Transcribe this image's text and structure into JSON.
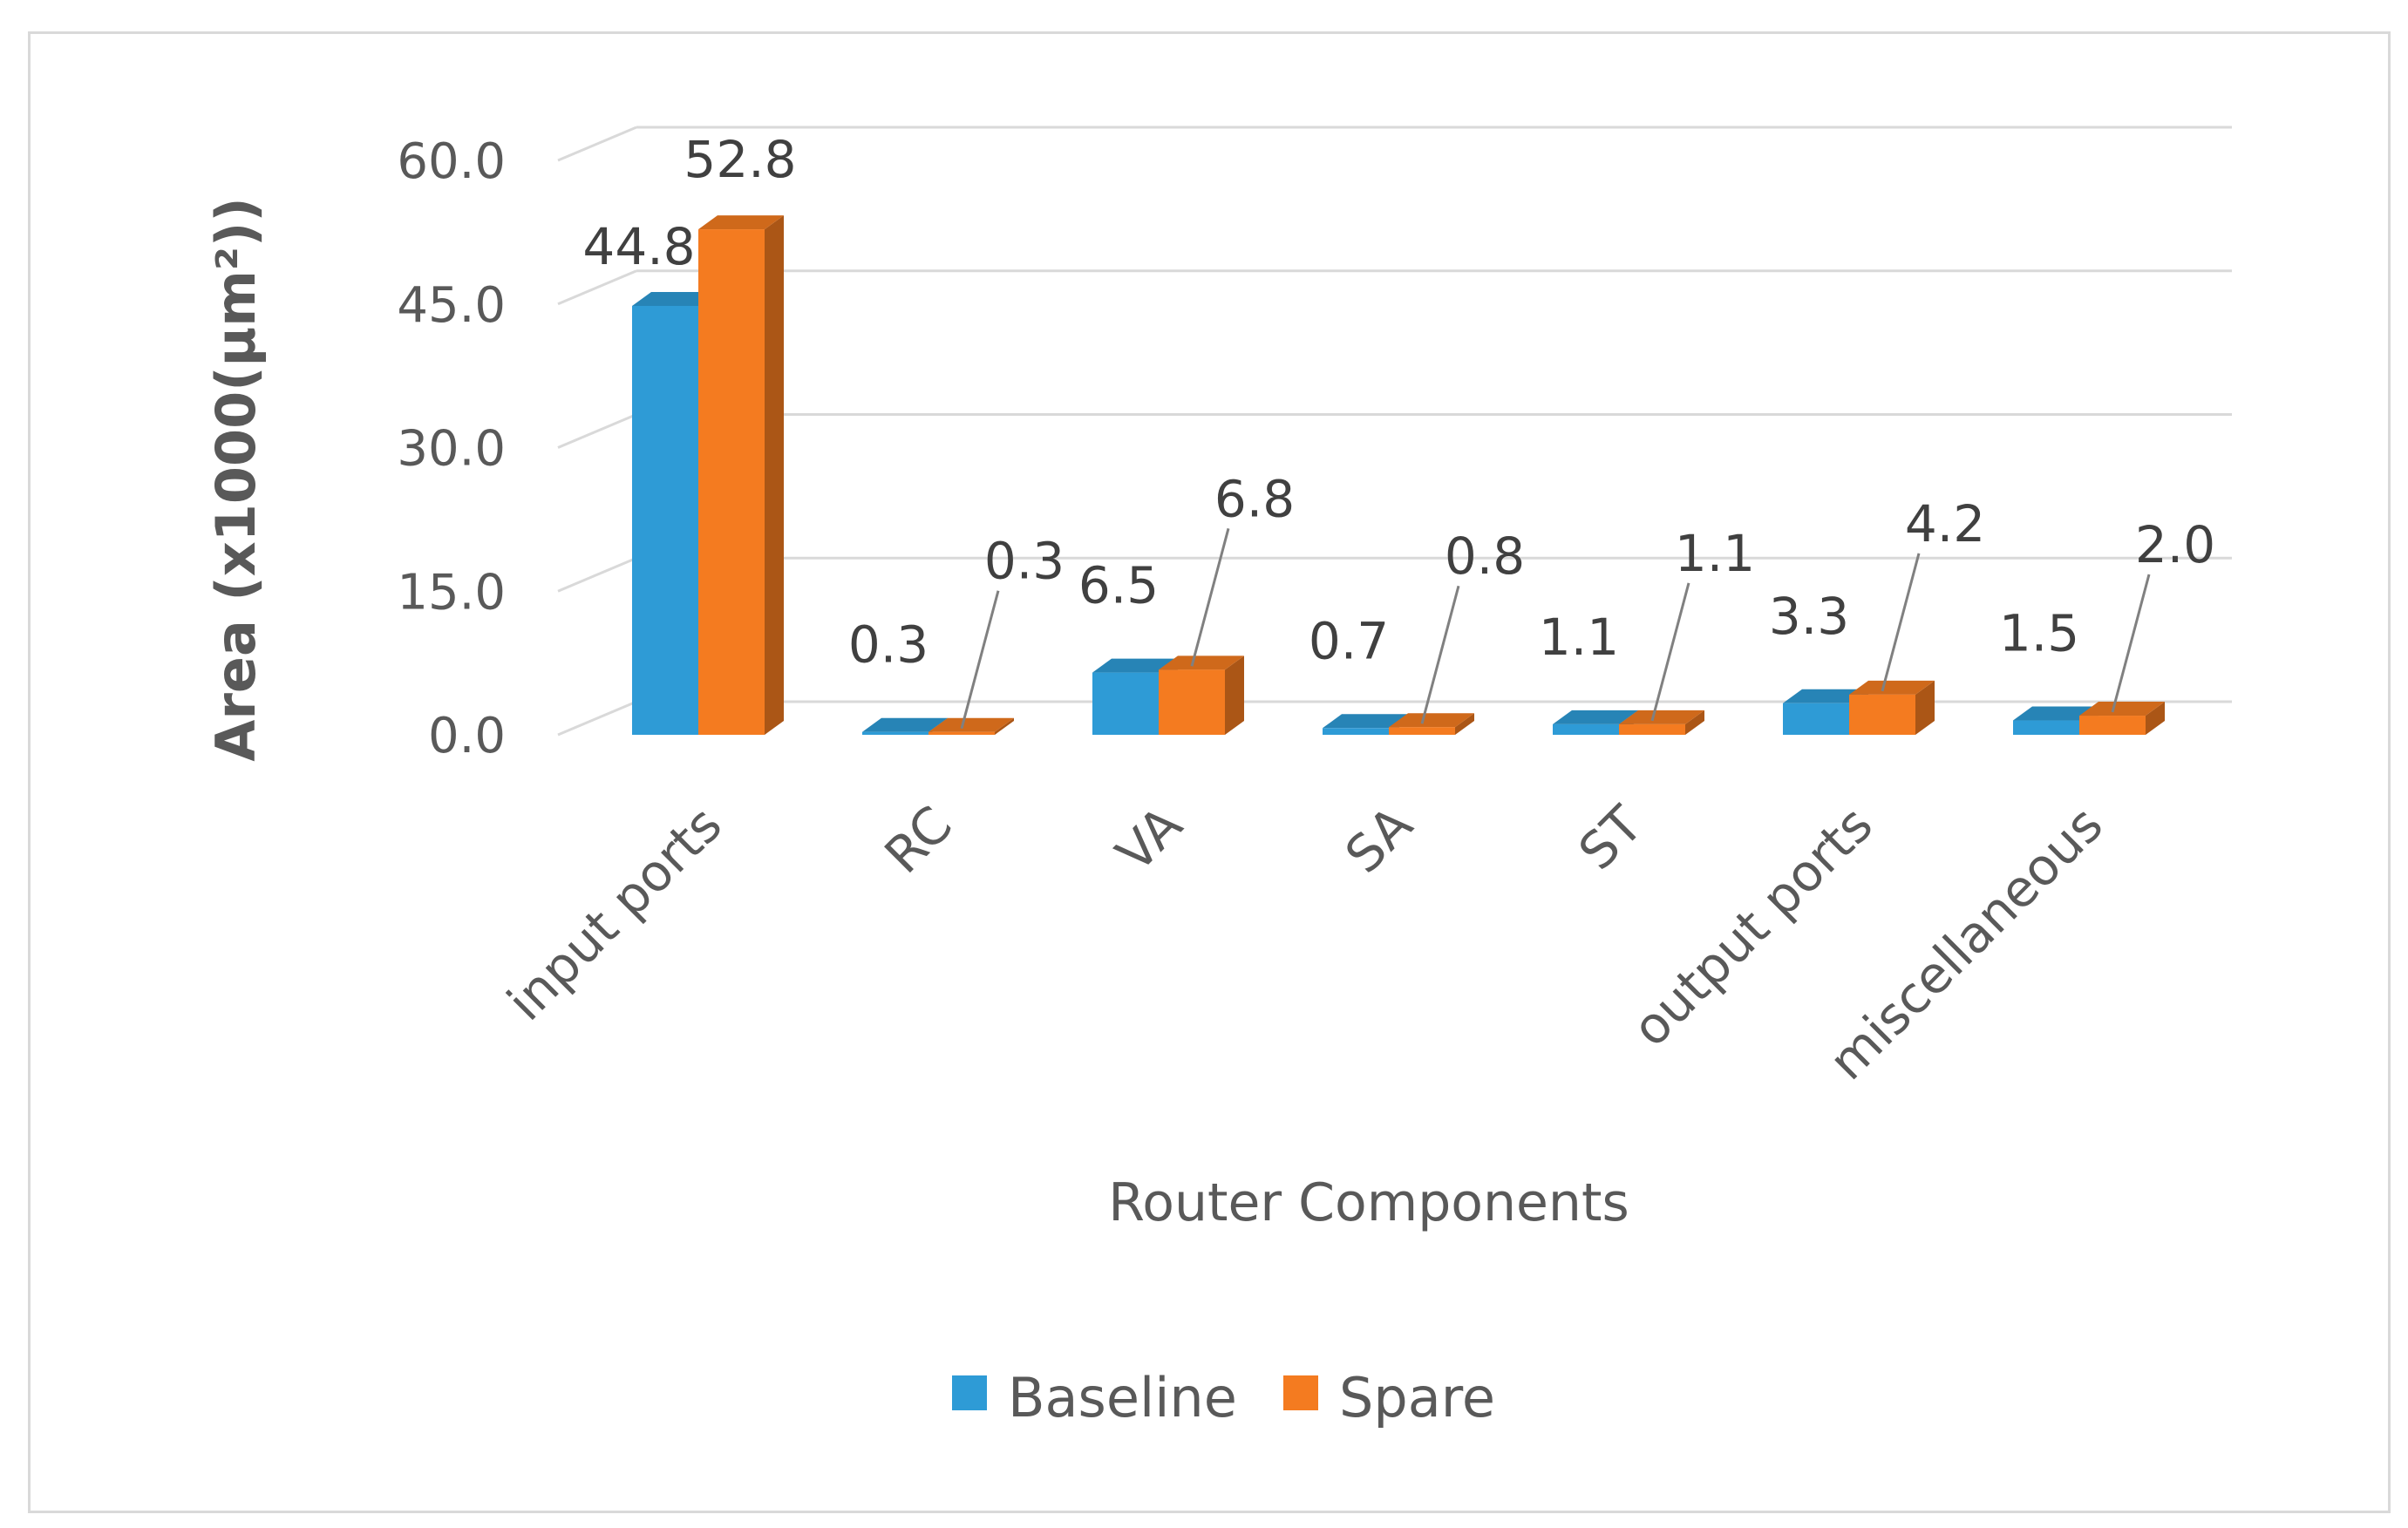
{
  "chart_data": {
    "type": "bar",
    "categories": [
      "input ports",
      "RC",
      "VA",
      "SA",
      "ST",
      "output ports",
      "miscellaneous"
    ],
    "series": [
      {
        "name": "Baseline",
        "color": "#2E9BD6",
        "values": [
          44.8,
          0.3,
          6.5,
          0.7,
          1.1,
          3.3,
          1.5
        ]
      },
      {
        "name": "Spare",
        "color": "#F47B20",
        "values": [
          52.8,
          0.3,
          6.8,
          0.8,
          1.1,
          4.2,
          2.0
        ]
      }
    ],
    "value_labels": {
      "Baseline": [
        "44.8",
        "0.3",
        "6.5",
        "0.7",
        "1.1",
        "3.3",
        "1.5"
      ],
      "Spare": [
        "52.8",
        "0.3",
        "6.8",
        "0.8",
        "1.1",
        "4.2",
        "2.0"
      ]
    },
    "yticks": [
      "0.0",
      "15.0",
      "30.0",
      "45.0",
      "60.0"
    ],
    "ylim": [
      0,
      60
    ],
    "xlabel": "Router Components",
    "ylabel": "Area (x1000(µm²))",
    "legend_position": "bottom",
    "grid": true,
    "style": "3d-clustered-column"
  }
}
